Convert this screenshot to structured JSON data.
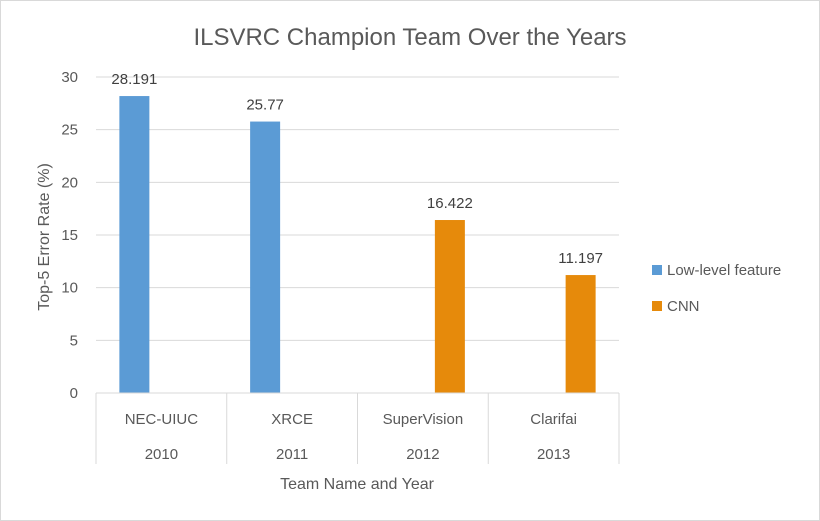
{
  "chart_data": {
    "type": "bar",
    "title": "ILSVRC Champion Team Over the Years",
    "xlabel": "Team Name and Year",
    "ylabel": "Top-5 Error Rate (%)",
    "ylim": [
      0,
      30
    ],
    "yticks": [
      0,
      5,
      10,
      15,
      20,
      25,
      30
    ],
    "grid": true,
    "legend_position": "right",
    "categories": [
      {
        "team": "NEC-UIUC",
        "year": "2010"
      },
      {
        "team": "XRCE",
        "year": "2011"
      },
      {
        "team": "SuperVision",
        "year": "2012"
      },
      {
        "team": "Clarifai",
        "year": "2013"
      }
    ],
    "series": [
      {
        "name": "Low-level feature",
        "color": "#5b9bd5",
        "values": [
          28.191,
          25.77,
          null,
          null
        ],
        "labels": [
          "28.191",
          "25.77",
          null,
          null
        ]
      },
      {
        "name": "CNN",
        "color": "#e68a0b",
        "values": [
          null,
          null,
          16.422,
          11.197
        ],
        "labels": [
          null,
          null,
          "16.422",
          "11.197"
        ]
      }
    ]
  }
}
